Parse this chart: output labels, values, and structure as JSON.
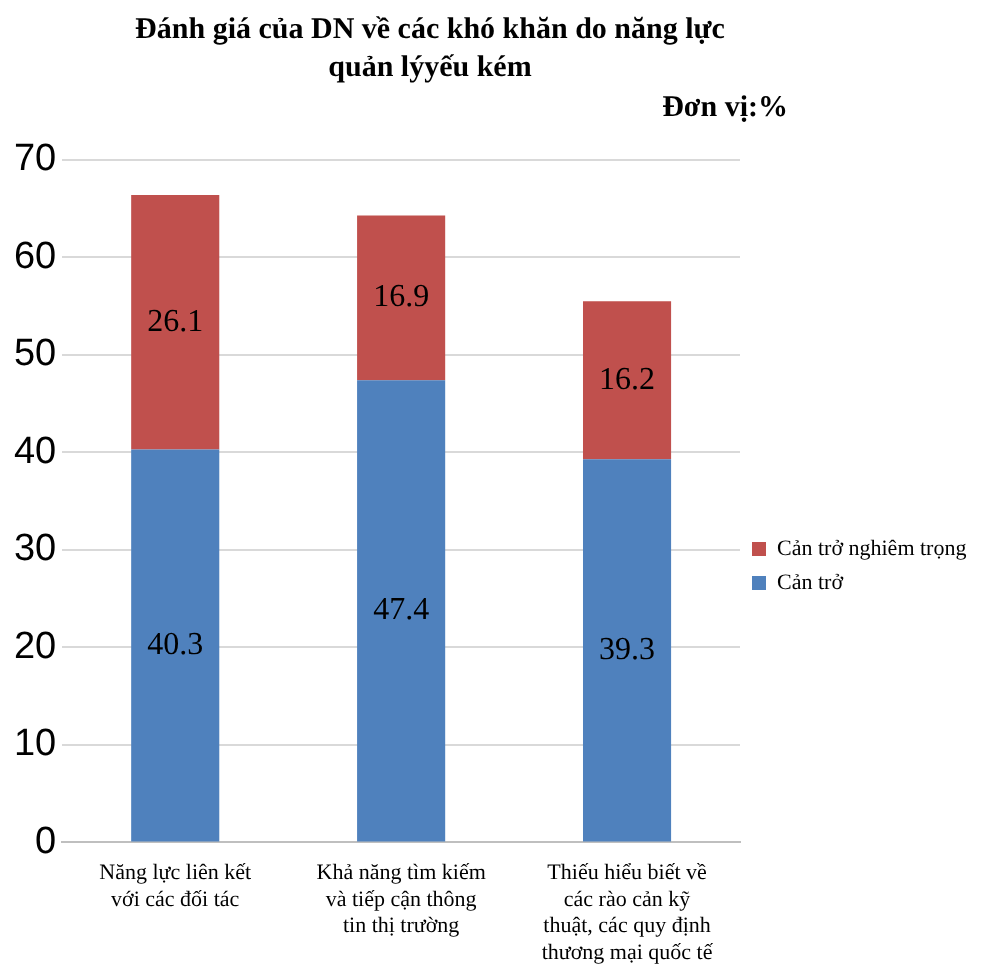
{
  "chart_data": {
    "type": "bar",
    "title": "Đánh giá của DN về các khó khăn do năng lực quản lýyếu kém",
    "annotations": [
      "Đơn vị:%"
    ],
    "categories": [
      "Năng lực liên kết với các đối tác",
      "Khả năng tìm kiếm và tiếp cận thông tin thị trường",
      "Thiếu hiểu biết về các rào cản kỹ thuật, các quy định thương mại quốc tế"
    ],
    "series": [
      {
        "name": "Cản trở",
        "color": "#4f81bd",
        "values": [
          40.3,
          47.4,
          39.3
        ]
      },
      {
        "name": "Cản trở nghiêm trọng",
        "color": "#c0504d",
        "values": [
          26.1,
          16.9,
          16.2
        ]
      }
    ],
    "stacked": true,
    "data_labels": true,
    "ylim": [
      0,
      70
    ],
    "yticks": [
      0,
      10,
      20,
      30,
      40,
      50,
      60,
      70
    ],
    "grid": "y",
    "legend": "right"
  }
}
